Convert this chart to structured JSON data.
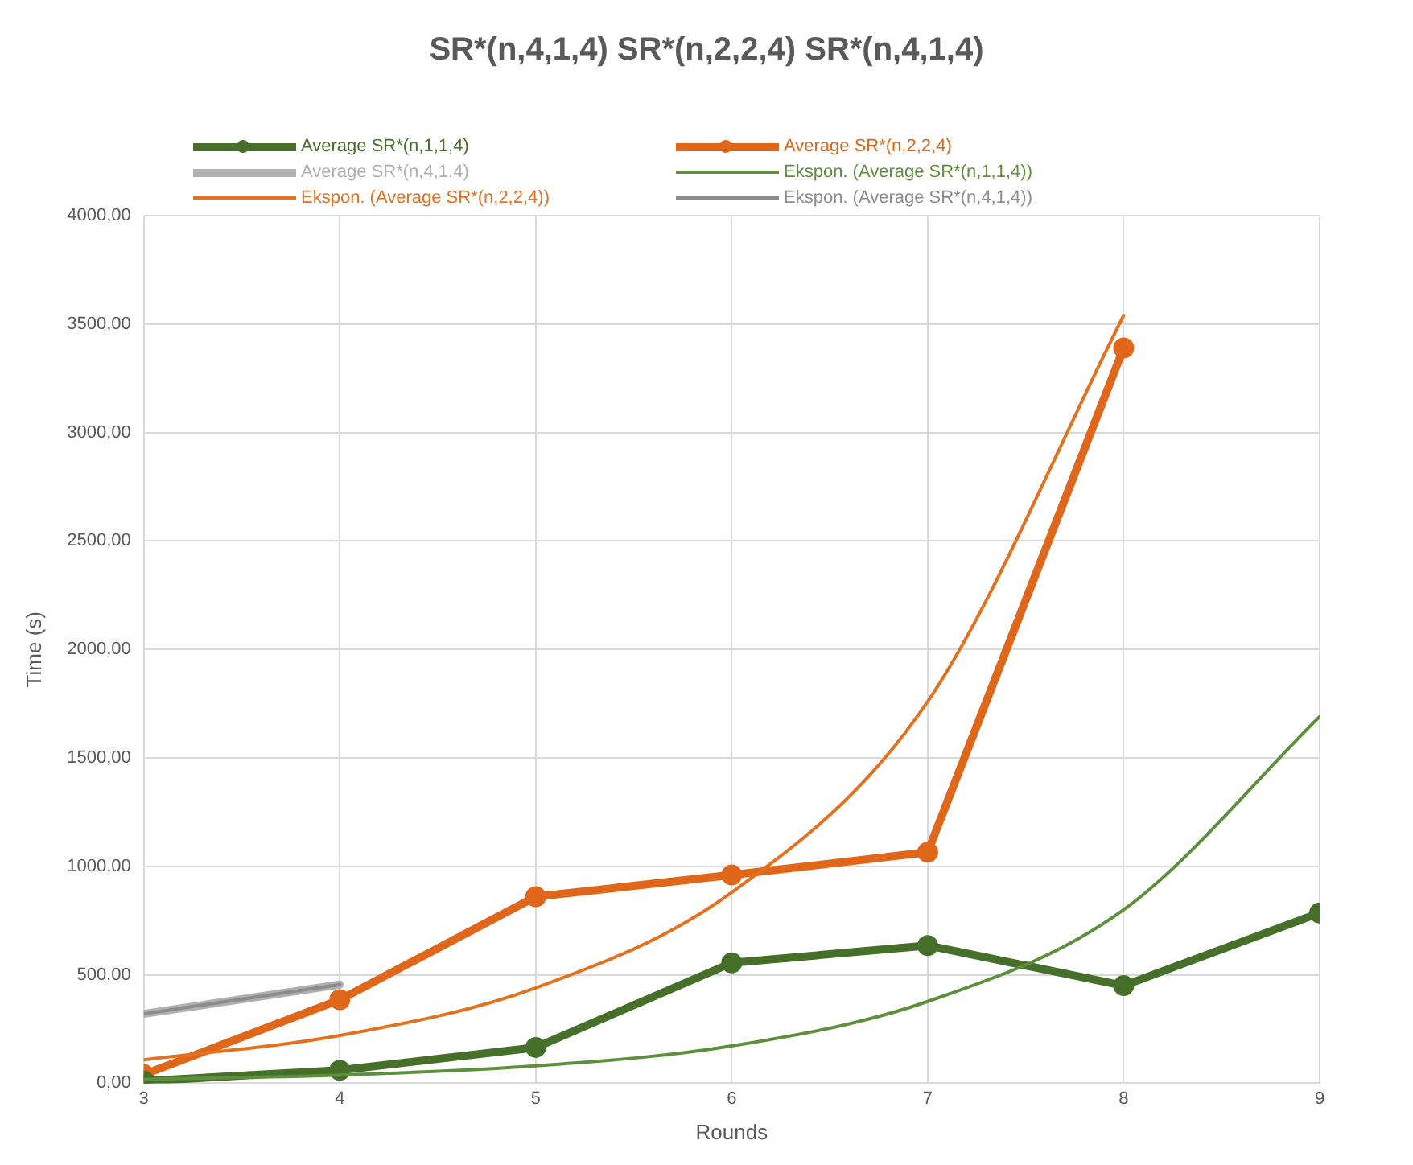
{
  "chart_data": {
    "type": "line",
    "title": "SR*(n,4,1,4)  SR*(n,2,2,4)  SR*(n,4,1,4)",
    "xlabel": "Rounds",
    "ylabel": "Time (s)",
    "x": [
      3,
      4,
      5,
      6,
      7,
      8,
      9
    ],
    "xlim": [
      3,
      9
    ],
    "xticks": [
      3,
      4,
      5,
      6,
      7,
      8,
      9
    ],
    "ylim": [
      0,
      4000
    ],
    "yticks": [
      {
        "value": 0,
        "label": "0,00"
      },
      {
        "value": 500,
        "label": "500,00"
      },
      {
        "value": 1000,
        "label": "1000,00"
      },
      {
        "value": 1500,
        "label": "1500,00"
      },
      {
        "value": 2000,
        "label": "2000,00"
      },
      {
        "value": 2500,
        "label": "2500,00"
      },
      {
        "value": 3000,
        "label": "3000,00"
      },
      {
        "value": 3500,
        "label": "3500,00"
      },
      {
        "value": 4000,
        "label": "4000,00"
      }
    ],
    "grid": true,
    "legend": "top",
    "series": [
      {
        "name": "Average SR*(n,1,1,4)",
        "color": "#46702a",
        "marker": "circle",
        "values": [
          10,
          60,
          165,
          555,
          635,
          450,
          785
        ]
      },
      {
        "name": "Average SR*(n,2,2,4)",
        "color": "#e0661a",
        "marker": "circle",
        "values": [
          40,
          385,
          860,
          960,
          1065,
          3390,
          null
        ]
      },
      {
        "name": "Average SR*(n,4,1,4)",
        "color": "#b0b0b0",
        "marker": "none",
        "values": [
          320,
          455,
          null,
          null,
          null,
          null,
          null
        ]
      },
      {
        "name": "Ekspon. (Average SR*(n,1,1,4))",
        "type": "line",
        "color": "#5e8f3c",
        "marker": "none",
        "x": [
          3,
          4,
          5,
          6,
          7,
          8,
          9
        ],
        "values": [
          18,
          38,
          80,
          172,
          377,
          800,
          1690
        ]
      },
      {
        "name": "Ekspon. (Average SR*(n,2,2,4))",
        "type": "line",
        "color": "#e3711f",
        "marker": "none",
        "x": [
          3,
          4,
          5,
          6,
          7,
          8
        ],
        "values": [
          108,
          220,
          440,
          880,
          1760,
          3540
        ]
      },
      {
        "name": "Ekspon. (Average SR*(n,4,1,4))",
        "type": "line",
        "color": "#8c8c8c",
        "marker": "none",
        "x": [
          3,
          4
        ],
        "values": [
          320,
          455
        ]
      }
    ]
  }
}
